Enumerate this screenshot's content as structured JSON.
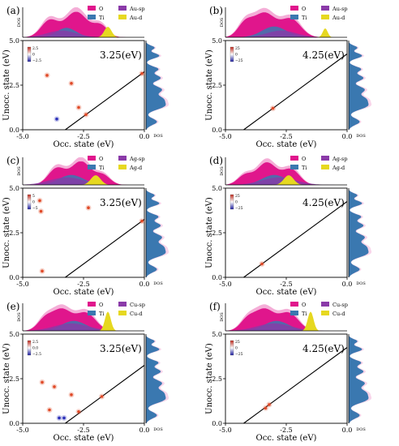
{
  "figure": {
    "common": {
      "xlabel": "Occ. state (eV)",
      "ylabel": "Unocc. state (eV)",
      "dos_label": "DOS",
      "x_ticks": [
        "-5.0",
        "-2.5",
        "0.0"
      ],
      "y_ticks": [
        "0.0",
        "2.5",
        "5.0"
      ],
      "xlim": [
        -5.0,
        0.0
      ],
      "ylim": [
        0.0,
        5.0
      ]
    },
    "colors": {
      "O": "#e0168c",
      "Ti": "#3a78b0",
      "sp": "#8a3aa8",
      "d": "#e6d820",
      "line": "#000000"
    }
  },
  "chart_data": [
    {
      "type": "heatmap",
      "label": "(a)",
      "energy": "3.25(eV)",
      "legend": [
        "O",
        "Ti",
        "Au-sp",
        "Au-d"
      ],
      "colorbar": [
        "2.5",
        "0",
        "−2.5"
      ],
      "transition_line": {
        "slope": 1,
        "intercept": 3.25
      },
      "points": [
        {
          "x": -2.4,
          "y": 0.85,
          "v": 1
        },
        {
          "x": -2.7,
          "y": 1.25,
          "v": 1
        },
        {
          "x": -3.6,
          "y": 0.6,
          "v": -1
        },
        {
          "x": -3.0,
          "y": 2.6,
          "v": 1
        },
        {
          "x": -4.0,
          "y": 3.05,
          "v": 1
        },
        {
          "x": -0.1,
          "y": 3.15,
          "v": 1
        }
      ]
    },
    {
      "type": "heatmap",
      "label": "(b)",
      "energy": "4.25(eV)",
      "legend": [
        "O",
        "Ti",
        "Au-sp",
        "Au-d"
      ],
      "colorbar": [
        "25",
        "0",
        "−25"
      ],
      "transition_line": {
        "slope": 1,
        "intercept": 4.25
      },
      "points": [
        {
          "x": -3.05,
          "y": 1.2,
          "v": 1
        }
      ]
    },
    {
      "type": "heatmap",
      "label": "(c)",
      "energy": "3.25(eV)",
      "legend": [
        "O",
        "Ti",
        "Ag-sp",
        "Ag-d"
      ],
      "colorbar": [
        "5",
        "0",
        "−5"
      ],
      "transition_line": {
        "slope": 1,
        "intercept": 3.25
      },
      "points": [
        {
          "x": -0.1,
          "y": 3.15,
          "v": 1
        },
        {
          "x": -4.3,
          "y": 4.3,
          "v": 1
        },
        {
          "x": -4.25,
          "y": 3.7,
          "v": 1
        },
        {
          "x": -2.3,
          "y": 3.9,
          "v": 1
        },
        {
          "x": -4.2,
          "y": 0.35,
          "v": 1
        }
      ]
    },
    {
      "type": "heatmap",
      "label": "(d)",
      "energy": "4.25(eV)",
      "legend": [
        "O",
        "Ti",
        "Ag-sp",
        "Ag-d"
      ],
      "colorbar": [
        "25",
        "0",
        "−25"
      ],
      "transition_line": {
        "slope": 1,
        "intercept": 4.25
      },
      "points": [
        {
          "x": -3.5,
          "y": 0.75,
          "v": 1
        }
      ]
    },
    {
      "type": "heatmap",
      "label": "(e)",
      "energy": "3.25(eV)",
      "legend": [
        "O",
        "Ti",
        "Cu-sp",
        "Cu-d"
      ],
      "colorbar": [
        "2.5",
        "0.0",
        "−2.5"
      ],
      "transition_line": {
        "slope": 1,
        "intercept": 3.25
      },
      "points": [
        {
          "x": -1.75,
          "y": 1.5,
          "v": 1
        },
        {
          "x": -2.7,
          "y": 0.65,
          "v": 1
        },
        {
          "x": -3.5,
          "y": 0.3,
          "v": -1
        },
        {
          "x": -3.3,
          "y": 0.3,
          "v": -1
        },
        {
          "x": -3.9,
          "y": 0.75,
          "v": 1
        },
        {
          "x": -4.2,
          "y": 2.3,
          "v": 1
        },
        {
          "x": -3.0,
          "y": 1.6,
          "v": 1
        },
        {
          "x": -3.7,
          "y": 2.05,
          "v": 1
        }
      ]
    },
    {
      "type": "heatmap",
      "label": "(f)",
      "energy": "4.25(eV)",
      "legend": [
        "O",
        "Ti",
        "Cu-sp",
        "Cu-d"
      ],
      "colorbar": [
        "25",
        "0",
        "−25"
      ],
      "transition_line": {
        "slope": 1,
        "intercept": 4.25
      },
      "points": [
        {
          "x": -3.35,
          "y": 0.85,
          "v": 1
        },
        {
          "x": -3.2,
          "y": 1.05,
          "v": 1
        }
      ]
    }
  ]
}
